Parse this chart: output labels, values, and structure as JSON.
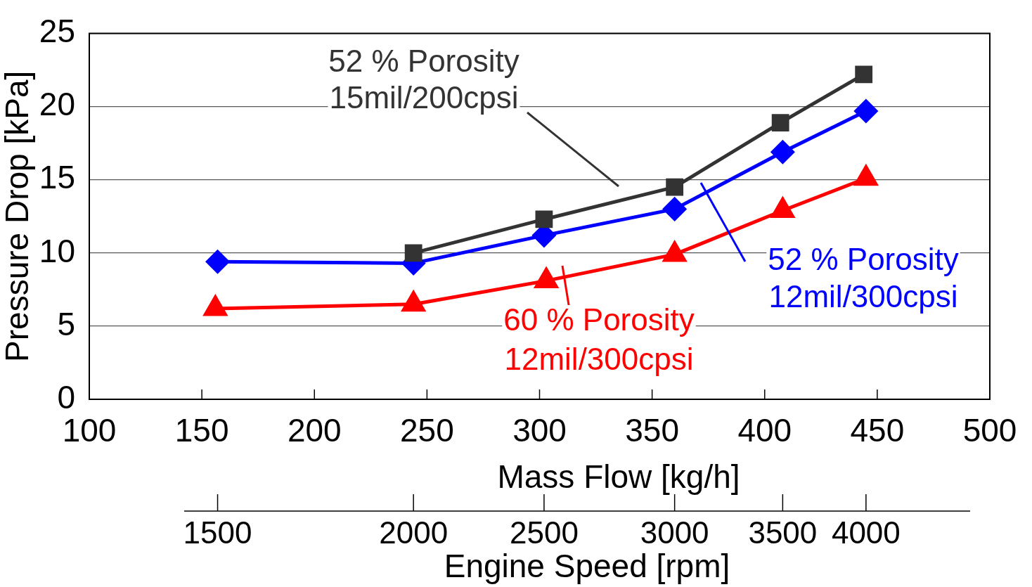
{
  "chart_data": {
    "type": "line",
    "xlabel": "Mass Flow [kg/h]",
    "ylabel": "Pressure Drop [kPa]",
    "x2label": "Engine Speed [rpm]",
    "xlim": [
      100,
      500
    ],
    "xticks": [
      100,
      150,
      200,
      250,
      300,
      350,
      400,
      450,
      500
    ],
    "ylim": [
      0,
      25
    ],
    "yticks": [
      0,
      5,
      10,
      15,
      20,
      25
    ],
    "annotations": [
      "1500",
      "2000",
      "2500",
      "3000",
      "3500",
      "4000"
    ],
    "grid": "y",
    "series": [
      {
        "name": "52 % Porosity\n15mil/200cpsi",
        "color": "#333333",
        "marker": "square",
        "x": [
          244,
          302,
          360,
          407,
          444
        ],
        "values": [
          10,
          12.3,
          14.5,
          18.9,
          22.2
        ]
      },
      {
        "name": "52 % Porosity\n12mil/300cpsi",
        "color": "#0000ff",
        "marker": "diamond",
        "x": [
          157,
          244,
          302,
          360,
          408,
          445
        ],
        "values": [
          9.4,
          9.3,
          11.2,
          13,
          16.9,
          19.7
        ]
      },
      {
        "name": "60 % Porosity\n12mil/300cpsi",
        "color": "#ff0000",
        "marker": "triangle",
        "x": [
          156,
          244,
          303,
          360,
          408,
          445
        ],
        "values": [
          6.2,
          6.5,
          8.1,
          9.9,
          12.9,
          15.1
        ]
      }
    ]
  }
}
